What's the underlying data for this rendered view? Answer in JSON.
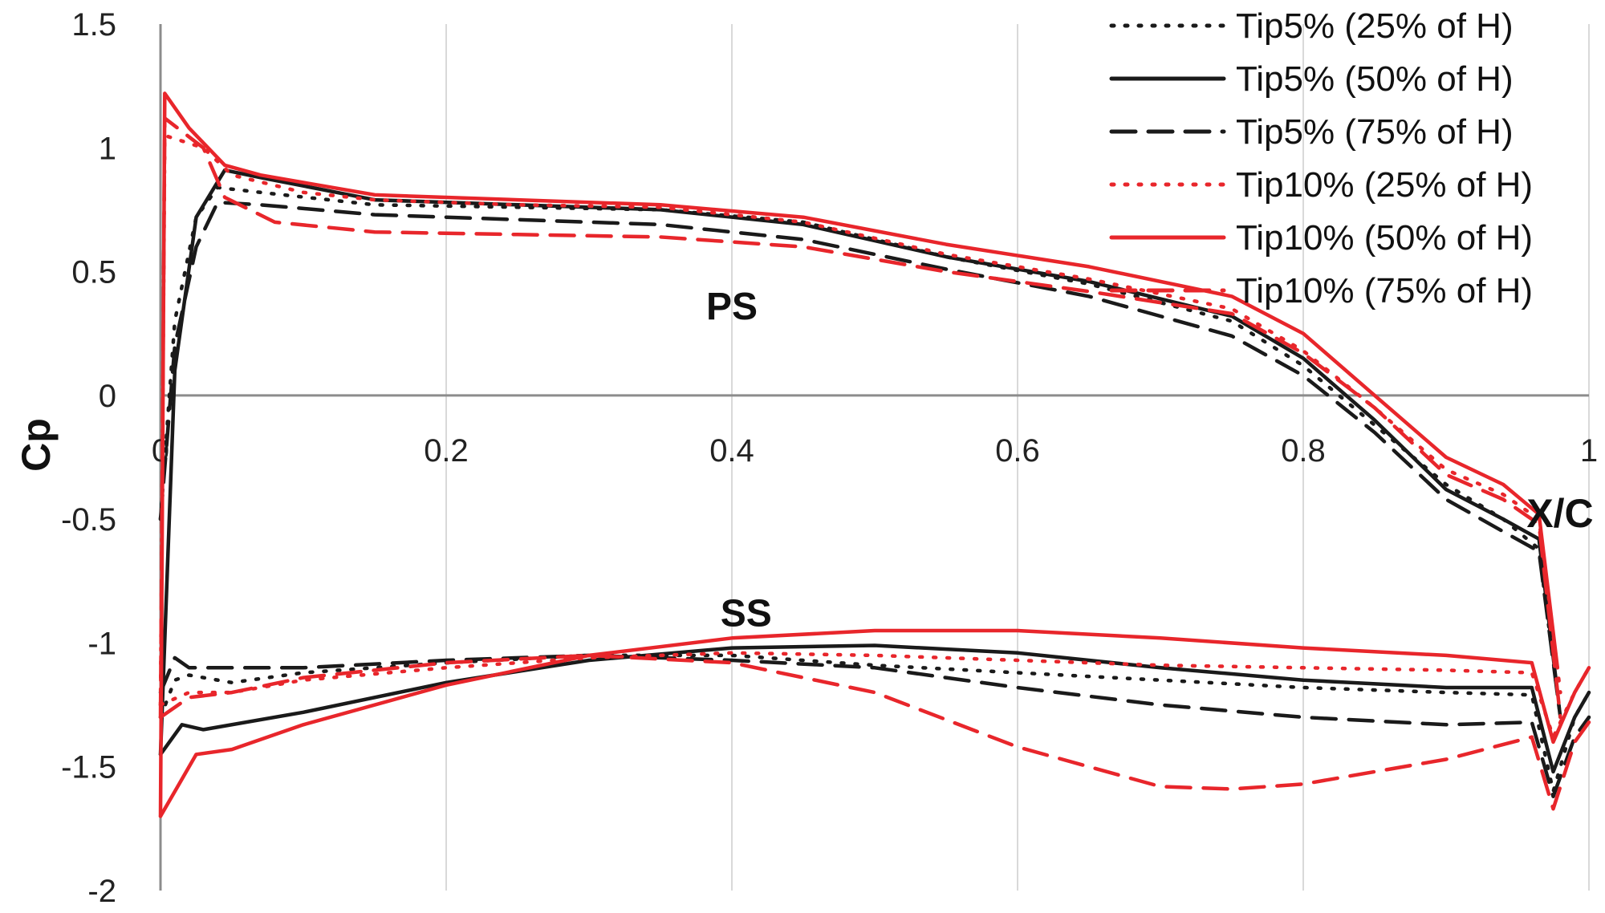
{
  "chart_data": {
    "type": "line",
    "title": "",
    "xlabel": "X/C",
    "ylabel": "Cp",
    "xlim": [
      0,
      1
    ],
    "ylim": [
      -2,
      1.5
    ],
    "grid": "vertical",
    "legend_position": "top-right",
    "x_ticks": [
      "0",
      "0.2",
      "0.4",
      "0.6",
      "0.8",
      "1"
    ],
    "y_ticks": [
      "1.5",
      "1",
      "0.5",
      "0",
      "-0.5",
      "-1",
      "-1.5",
      "-2"
    ],
    "annotations": [
      {
        "text": "PS",
        "x": 0.4,
        "y": 0.36
      },
      {
        "text": "SS",
        "x": 0.41,
        "y": -0.88
      }
    ],
    "colors": {
      "black": "#1a1a1a",
      "red": "#e8262b",
      "grid": "#d9d9d9",
      "axis": "#8c8c8c"
    },
    "series": [
      {
        "name": "Tip5% (25% of H)",
        "color": "black",
        "dash": "dot",
        "ps": [
          [
            0,
            -0.5
          ],
          [
            0.01,
            0.3
          ],
          [
            0.025,
            0.72
          ],
          [
            0.04,
            0.84
          ],
          [
            0.07,
            0.82
          ],
          [
            0.15,
            0.77
          ],
          [
            0.25,
            0.76
          ],
          [
            0.35,
            0.75
          ],
          [
            0.45,
            0.7
          ],
          [
            0.55,
            0.56
          ],
          [
            0.65,
            0.45
          ],
          [
            0.75,
            0.3
          ],
          [
            0.8,
            0.12
          ],
          [
            0.85,
            -0.12
          ],
          [
            0.9,
            -0.36
          ],
          [
            0.94,
            -0.5
          ],
          [
            0.965,
            -0.62
          ],
          [
            0.98,
            -1.3
          ]
        ],
        "ss": [
          [
            0,
            -1.3
          ],
          [
            0.01,
            -1.15
          ],
          [
            0.02,
            -1.13
          ],
          [
            0.05,
            -1.16
          ],
          [
            0.1,
            -1.12
          ],
          [
            0.2,
            -1.08
          ],
          [
            0.3,
            -1.05
          ],
          [
            0.4,
            -1.05
          ],
          [
            0.5,
            -1.09
          ],
          [
            0.6,
            -1.12
          ],
          [
            0.7,
            -1.15
          ],
          [
            0.8,
            -1.18
          ],
          [
            0.9,
            -1.2
          ],
          [
            0.96,
            -1.21
          ],
          [
            0.975,
            -1.6
          ],
          [
            0.99,
            -1.3
          ],
          [
            1,
            -1.2
          ]
        ]
      },
      {
        "name": "Tip5% (50% of H)",
        "color": "black",
        "dash": "solid",
        "ps": [
          [
            0,
            -1.45
          ],
          [
            0.01,
            0.1
          ],
          [
            0.025,
            0.72
          ],
          [
            0.045,
            0.91
          ],
          [
            0.07,
            0.88
          ],
          [
            0.15,
            0.79
          ],
          [
            0.25,
            0.77
          ],
          [
            0.35,
            0.75
          ],
          [
            0.45,
            0.69
          ],
          [
            0.55,
            0.56
          ],
          [
            0.65,
            0.46
          ],
          [
            0.75,
            0.32
          ],
          [
            0.8,
            0.15
          ],
          [
            0.85,
            -0.1
          ],
          [
            0.9,
            -0.38
          ],
          [
            0.94,
            -0.5
          ],
          [
            0.965,
            -0.58
          ],
          [
            0.978,
            -1.2
          ]
        ],
        "ss": [
          [
            0,
            -1.45
          ],
          [
            0.015,
            -1.33
          ],
          [
            0.03,
            -1.35
          ],
          [
            0.1,
            -1.28
          ],
          [
            0.2,
            -1.16
          ],
          [
            0.3,
            -1.07
          ],
          [
            0.4,
            -1.02
          ],
          [
            0.5,
            -1.01
          ],
          [
            0.6,
            -1.04
          ],
          [
            0.7,
            -1.1
          ],
          [
            0.8,
            -1.15
          ],
          [
            0.9,
            -1.18
          ],
          [
            0.96,
            -1.18
          ],
          [
            0.975,
            -1.52
          ],
          [
            0.99,
            -1.3
          ],
          [
            1,
            -1.2
          ]
        ]
      },
      {
        "name": "Tip5% (75% of H)",
        "color": "black",
        "dash": "dash",
        "ps": [
          [
            0,
            -0.5
          ],
          [
            0.01,
            0.2
          ],
          [
            0.025,
            0.6
          ],
          [
            0.04,
            0.78
          ],
          [
            0.07,
            0.77
          ],
          [
            0.15,
            0.73
          ],
          [
            0.25,
            0.71
          ],
          [
            0.35,
            0.69
          ],
          [
            0.45,
            0.63
          ],
          [
            0.55,
            0.51
          ],
          [
            0.65,
            0.4
          ],
          [
            0.75,
            0.24
          ],
          [
            0.8,
            0.08
          ],
          [
            0.85,
            -0.15
          ],
          [
            0.9,
            -0.42
          ],
          [
            0.94,
            -0.55
          ],
          [
            0.965,
            -0.63
          ],
          [
            0.98,
            -1.3
          ]
        ],
        "ss": [
          [
            0,
            -1.2
          ],
          [
            0.01,
            -1.06
          ],
          [
            0.02,
            -1.1
          ],
          [
            0.1,
            -1.1
          ],
          [
            0.2,
            -1.07
          ],
          [
            0.3,
            -1.05
          ],
          [
            0.4,
            -1.07
          ],
          [
            0.5,
            -1.1
          ],
          [
            0.6,
            -1.18
          ],
          [
            0.7,
            -1.25
          ],
          [
            0.8,
            -1.3
          ],
          [
            0.9,
            -1.33
          ],
          [
            0.96,
            -1.32
          ],
          [
            0.975,
            -1.62
          ],
          [
            0.99,
            -1.38
          ],
          [
            1,
            -1.3
          ]
        ]
      },
      {
        "name": "Tip10% (25% of H)",
        "color": "red",
        "dash": "dot",
        "ps": [
          [
            0,
            -1.25
          ],
          [
            0.003,
            1.05
          ],
          [
            0.03,
            1.0
          ],
          [
            0.05,
            0.89
          ],
          [
            0.1,
            0.82
          ],
          [
            0.15,
            0.79
          ],
          [
            0.25,
            0.77
          ],
          [
            0.35,
            0.76
          ],
          [
            0.45,
            0.7
          ],
          [
            0.55,
            0.57
          ],
          [
            0.65,
            0.47
          ],
          [
            0.75,
            0.35
          ],
          [
            0.8,
            0.18
          ],
          [
            0.85,
            -0.05
          ],
          [
            0.9,
            -0.3
          ],
          [
            0.94,
            -0.4
          ],
          [
            0.965,
            -0.5
          ],
          [
            0.98,
            -1.2
          ]
        ],
        "ss": [
          [
            0,
            -1.25
          ],
          [
            0.02,
            -1.2
          ],
          [
            0.05,
            -1.2
          ],
          [
            0.1,
            -1.15
          ],
          [
            0.2,
            -1.1
          ],
          [
            0.3,
            -1.06
          ],
          [
            0.4,
            -1.04
          ],
          [
            0.5,
            -1.05
          ],
          [
            0.6,
            -1.07
          ],
          [
            0.7,
            -1.09
          ],
          [
            0.8,
            -1.1
          ],
          [
            0.9,
            -1.11
          ],
          [
            0.96,
            -1.12
          ],
          [
            0.975,
            -1.38
          ],
          [
            0.99,
            -1.2
          ],
          [
            1,
            -1.1
          ]
        ]
      },
      {
        "name": "Tip10% (50% of H)",
        "color": "red",
        "dash": "solid",
        "ps": [
          [
            0,
            -1.7
          ],
          [
            0.003,
            1.22
          ],
          [
            0.02,
            1.08
          ],
          [
            0.045,
            0.93
          ],
          [
            0.07,
            0.89
          ],
          [
            0.15,
            0.81
          ],
          [
            0.25,
            0.79
          ],
          [
            0.35,
            0.77
          ],
          [
            0.45,
            0.72
          ],
          [
            0.55,
            0.61
          ],
          [
            0.65,
            0.52
          ],
          [
            0.75,
            0.4
          ],
          [
            0.8,
            0.25
          ],
          [
            0.85,
            0.0
          ],
          [
            0.9,
            -0.25
          ],
          [
            0.94,
            -0.36
          ],
          [
            0.965,
            -0.48
          ],
          [
            0.978,
            -1.1
          ]
        ],
        "ss": [
          [
            0,
            -1.7
          ],
          [
            0.012,
            -1.58
          ],
          [
            0.025,
            -1.45
          ],
          [
            0.05,
            -1.43
          ],
          [
            0.1,
            -1.33
          ],
          [
            0.2,
            -1.17
          ],
          [
            0.3,
            -1.05
          ],
          [
            0.4,
            -0.98
          ],
          [
            0.5,
            -0.95
          ],
          [
            0.6,
            -0.95
          ],
          [
            0.7,
            -0.98
          ],
          [
            0.8,
            -1.02
          ],
          [
            0.9,
            -1.05
          ],
          [
            0.96,
            -1.08
          ],
          [
            0.975,
            -1.4
          ],
          [
            0.99,
            -1.2
          ],
          [
            1,
            -1.1
          ]
        ]
      },
      {
        "name": "Tip10% (75% of H)",
        "color": "red",
        "dash": "dash",
        "ps": [
          [
            0,
            -1.3
          ],
          [
            0.003,
            1.12
          ],
          [
            0.03,
            1.0
          ],
          [
            0.045,
            0.8
          ],
          [
            0.08,
            0.7
          ],
          [
            0.15,
            0.66
          ],
          [
            0.25,
            0.65
          ],
          [
            0.35,
            0.64
          ],
          [
            0.45,
            0.6
          ],
          [
            0.55,
            0.5
          ],
          [
            0.65,
            0.42
          ],
          [
            0.75,
            0.33
          ],
          [
            0.8,
            0.17
          ],
          [
            0.85,
            -0.05
          ],
          [
            0.9,
            -0.32
          ],
          [
            0.94,
            -0.42
          ],
          [
            0.965,
            -0.52
          ],
          [
            0.98,
            -1.3
          ]
        ],
        "ss": [
          [
            0,
            -1.3
          ],
          [
            0.02,
            -1.22
          ],
          [
            0.05,
            -1.2
          ],
          [
            0.1,
            -1.14
          ],
          [
            0.2,
            -1.08
          ],
          [
            0.3,
            -1.05
          ],
          [
            0.4,
            -1.08
          ],
          [
            0.5,
            -1.2
          ],
          [
            0.6,
            -1.42
          ],
          [
            0.7,
            -1.58
          ],
          [
            0.75,
            -1.59
          ],
          [
            0.8,
            -1.57
          ],
          [
            0.9,
            -1.47
          ],
          [
            0.96,
            -1.38
          ],
          [
            0.975,
            -1.67
          ],
          [
            0.99,
            -1.4
          ],
          [
            1,
            -1.32
          ]
        ]
      }
    ]
  }
}
